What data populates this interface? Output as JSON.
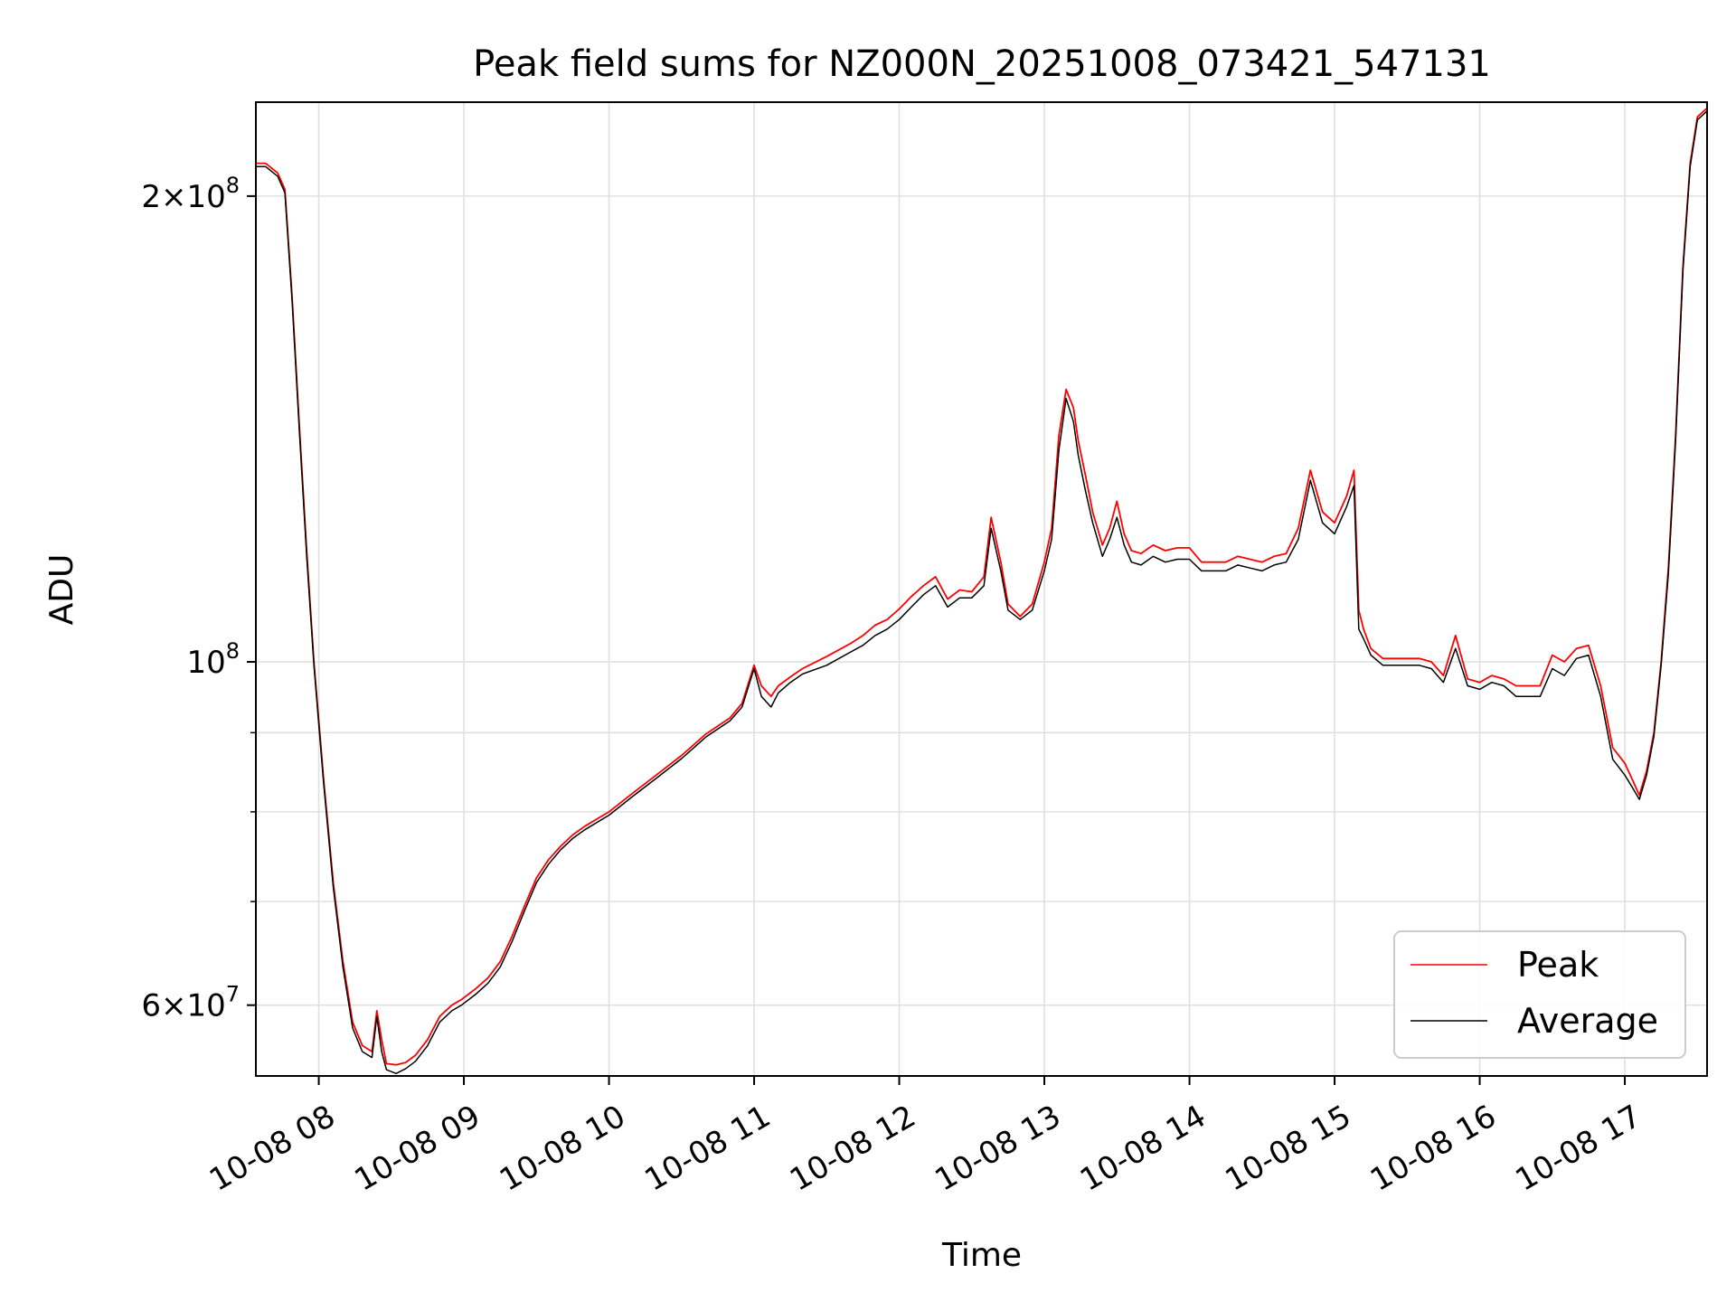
{
  "chart_data": {
    "type": "line",
    "title": "Peak field sums for NZ000N_20251008_073421_547131",
    "xlabel": "Time",
    "ylabel": "ADU",
    "yscale": "log",
    "xlim": [
      "2025-10-08 07:34",
      "2025-10-08 17:34"
    ],
    "ylim": [
      54000000,
      230000000
    ],
    "grid": true,
    "legend": {
      "placement": "lower-right",
      "entries": [
        "Peak",
        "Average"
      ]
    },
    "x_ticks": [
      {
        "x": "2025-10-08 08:00",
        "label": "10-08 08"
      },
      {
        "x": "2025-10-08 09:00",
        "label": "10-08 09"
      },
      {
        "x": "2025-10-08 10:00",
        "label": "10-08 10"
      },
      {
        "x": "2025-10-08 11:00",
        "label": "10-08 11"
      },
      {
        "x": "2025-10-08 12:00",
        "label": "10-08 12"
      },
      {
        "x": "2025-10-08 13:00",
        "label": "10-08 13"
      },
      {
        "x": "2025-10-08 14:00",
        "label": "10-08 14"
      },
      {
        "x": "2025-10-08 15:00",
        "label": "10-08 15"
      },
      {
        "x": "2025-10-08 16:00",
        "label": "10-08 16"
      },
      {
        "x": "2025-10-08 17:00",
        "label": "10-08 17"
      }
    ],
    "y_major_ticks": [
      {
        "y": 60000000,
        "base": "6×10",
        "exp": "7"
      },
      {
        "y": 100000000,
        "base": "10",
        "exp": "8"
      },
      {
        "y": 200000000,
        "base": "2×10",
        "exp": "8"
      }
    ],
    "y_minor_ticks": [
      70000000,
      80000000,
      90000000
    ],
    "series": [
      {
        "name": "Peak",
        "color": "#ff0000",
        "x": [
          "2025-10-08 07:34",
          "2025-10-08 07:38",
          "2025-10-08 07:43",
          "2025-10-08 07:46",
          "2025-10-08 07:49",
          "2025-10-08 07:52",
          "2025-10-08 07:55",
          "2025-10-08 07:58",
          "2025-10-08 08:02",
          "2025-10-08 08:06",
          "2025-10-08 08:10",
          "2025-10-08 08:14",
          "2025-10-08 08:18",
          "2025-10-08 08:22",
          "2025-10-08 08:24",
          "2025-10-08 08:26",
          "2025-10-08 08:28",
          "2025-10-08 08:32",
          "2025-10-08 08:36",
          "2025-10-08 08:40",
          "2025-10-08 08:45",
          "2025-10-08 08:50",
          "2025-10-08 08:55",
          "2025-10-08 08:59",
          "2025-10-08 09:05",
          "2025-10-08 09:10",
          "2025-10-08 09:15",
          "2025-10-08 09:20",
          "2025-10-08 09:25",
          "2025-10-08 09:30",
          "2025-10-08 09:35",
          "2025-10-08 09:40",
          "2025-10-08 09:45",
          "2025-10-08 09:50",
          "2025-10-08 10:00",
          "2025-10-08 10:10",
          "2025-10-08 10:20",
          "2025-10-08 10:30",
          "2025-10-08 10:40",
          "2025-10-08 10:50",
          "2025-10-08 10:55",
          "2025-10-08 11:00",
          "2025-10-08 11:03",
          "2025-10-08 11:07",
          "2025-10-08 11:10",
          "2025-10-08 11:15",
          "2025-10-08 11:20",
          "2025-10-08 11:30",
          "2025-10-08 11:40",
          "2025-10-08 11:45",
          "2025-10-08 11:50",
          "2025-10-08 11:55",
          "2025-10-08 12:00",
          "2025-10-08 12:05",
          "2025-10-08 12:10",
          "2025-10-08 12:15",
          "2025-10-08 12:20",
          "2025-10-08 12:25",
          "2025-10-08 12:30",
          "2025-10-08 12:35",
          "2025-10-08 12:38",
          "2025-10-08 12:42",
          "2025-10-08 12:45",
          "2025-10-08 12:50",
          "2025-10-08 12:55",
          "2025-10-08 13:00",
          "2025-10-08 13:03",
          "2025-10-08 13:06",
          "2025-10-08 13:09",
          "2025-10-08 13:12",
          "2025-10-08 13:14",
          "2025-10-08 13:17",
          "2025-10-08 13:20",
          "2025-10-08 13:24",
          "2025-10-08 13:27",
          "2025-10-08 13:30",
          "2025-10-08 13:33",
          "2025-10-08 13:36",
          "2025-10-08 13:40",
          "2025-10-08 13:45",
          "2025-10-08 13:50",
          "2025-10-08 13:55",
          "2025-10-08 14:00",
          "2025-10-08 14:05",
          "2025-10-08 14:10",
          "2025-10-08 14:15",
          "2025-10-08 14:20",
          "2025-10-08 14:25",
          "2025-10-08 14:30",
          "2025-10-08 14:35",
          "2025-10-08 14:40",
          "2025-10-08 14:45",
          "2025-10-08 14:50",
          "2025-10-08 14:55",
          "2025-10-08 15:00",
          "2025-10-08 15:05",
          "2025-10-08 15:08",
          "2025-10-08 15:10",
          "2025-10-08 15:12",
          "2025-10-08 15:15",
          "2025-10-08 15:20",
          "2025-10-08 15:25",
          "2025-10-08 15:30",
          "2025-10-08 15:35",
          "2025-10-08 15:40",
          "2025-10-08 15:45",
          "2025-10-08 15:50",
          "2025-10-08 15:55",
          "2025-10-08 16:00",
          "2025-10-08 16:05",
          "2025-10-08 16:10",
          "2025-10-08 16:15",
          "2025-10-08 16:20",
          "2025-10-08 16:25",
          "2025-10-08 16:30",
          "2025-10-08 16:35",
          "2025-10-08 16:40",
          "2025-10-08 16:45",
          "2025-10-08 16:50",
          "2025-10-08 16:55",
          "2025-10-08 17:00",
          "2025-10-08 17:03",
          "2025-10-08 17:06",
          "2025-10-08 17:09",
          "2025-10-08 17:12",
          "2025-10-08 17:15",
          "2025-10-08 17:18",
          "2025-10-08 17:21",
          "2025-10-08 17:24",
          "2025-10-08 17:27",
          "2025-10-08 17:30",
          "2025-10-08 17:34"
        ],
        "y": [
          210000000,
          210000000,
          207000000,
          202000000,
          172000000,
          142000000,
          118000000,
          100000000,
          84000000,
          72000000,
          64000000,
          58500000,
          56500000,
          56000000,
          59500000,
          57000000,
          55000000,
          54900000,
          55100000,
          55700000,
          57000000,
          59000000,
          60000000,
          60500000,
          61500000,
          62500000,
          64000000,
          66500000,
          69500000,
          72500000,
          74500000,
          76000000,
          77300000,
          78300000,
          80000000,
          82300000,
          84600000,
          87000000,
          89800000,
          92000000,
          94000000,
          99500000,
          96500000,
          95000000,
          96500000,
          97800000,
          99000000,
          100800000,
          102800000,
          104000000,
          105600000,
          106500000,
          108200000,
          110200000,
          112000000,
          113500000,
          109800000,
          111300000,
          111000000,
          113500000,
          124000000,
          116000000,
          109000000,
          107000000,
          109000000,
          116000000,
          122000000,
          140000000,
          150000000,
          146000000,
          139000000,
          132000000,
          125000000,
          119000000,
          122000000,
          127000000,
          121000000,
          118000000,
          117500000,
          119000000,
          118000000,
          118500000,
          118500000,
          116000000,
          116000000,
          116000000,
          117000000,
          116500000,
          116000000,
          117000000,
          117500000,
          122000000,
          133000000,
          125000000,
          123000000,
          128000000,
          133000000,
          108000000,
          105000000,
          102000000,
          100500000,
          100500000,
          100500000,
          100500000,
          100000000,
          98000000,
          104000000,
          97500000,
          97000000,
          98000000,
          97500000,
          96500000,
          96500000,
          96500000,
          101000000,
          100000000,
          102000000,
          102500000,
          96500000,
          88000000,
          86000000,
          84000000,
          82000000,
          85000000,
          90000000,
          100000000,
          115000000,
          140000000,
          180000000,
          210000000,
          225000000,
          228000000
        ]
      },
      {
        "name": "Average",
        "color": "#000000",
        "x": [
          "2025-10-08 07:34",
          "2025-10-08 07:38",
          "2025-10-08 07:43",
          "2025-10-08 07:46",
          "2025-10-08 07:49",
          "2025-10-08 07:52",
          "2025-10-08 07:55",
          "2025-10-08 07:58",
          "2025-10-08 08:02",
          "2025-10-08 08:06",
          "2025-10-08 08:10",
          "2025-10-08 08:14",
          "2025-10-08 08:18",
          "2025-10-08 08:22",
          "2025-10-08 08:24",
          "2025-10-08 08:26",
          "2025-10-08 08:28",
          "2025-10-08 08:32",
          "2025-10-08 08:36",
          "2025-10-08 08:40",
          "2025-10-08 08:45",
          "2025-10-08 08:50",
          "2025-10-08 08:55",
          "2025-10-08 08:59",
          "2025-10-08 09:05",
          "2025-10-08 09:10",
          "2025-10-08 09:15",
          "2025-10-08 09:20",
          "2025-10-08 09:25",
          "2025-10-08 09:30",
          "2025-10-08 09:35",
          "2025-10-08 09:40",
          "2025-10-08 09:45",
          "2025-10-08 09:50",
          "2025-10-08 10:00",
          "2025-10-08 10:10",
          "2025-10-08 10:20",
          "2025-10-08 10:30",
          "2025-10-08 10:40",
          "2025-10-08 10:50",
          "2025-10-08 10:55",
          "2025-10-08 11:00",
          "2025-10-08 11:03",
          "2025-10-08 11:07",
          "2025-10-08 11:10",
          "2025-10-08 11:15",
          "2025-10-08 11:20",
          "2025-10-08 11:30",
          "2025-10-08 11:40",
          "2025-10-08 11:45",
          "2025-10-08 11:50",
          "2025-10-08 11:55",
          "2025-10-08 12:00",
          "2025-10-08 12:05",
          "2025-10-08 12:10",
          "2025-10-08 12:15",
          "2025-10-08 12:20",
          "2025-10-08 12:25",
          "2025-10-08 12:30",
          "2025-10-08 12:35",
          "2025-10-08 12:38",
          "2025-10-08 12:42",
          "2025-10-08 12:45",
          "2025-10-08 12:50",
          "2025-10-08 12:55",
          "2025-10-08 13:00",
          "2025-10-08 13:03",
          "2025-10-08 13:06",
          "2025-10-08 13:09",
          "2025-10-08 13:12",
          "2025-10-08 13:14",
          "2025-10-08 13:17",
          "2025-10-08 13:20",
          "2025-10-08 13:24",
          "2025-10-08 13:27",
          "2025-10-08 13:30",
          "2025-10-08 13:33",
          "2025-10-08 13:36",
          "2025-10-08 13:40",
          "2025-10-08 13:45",
          "2025-10-08 13:50",
          "2025-10-08 13:55",
          "2025-10-08 14:00",
          "2025-10-08 14:05",
          "2025-10-08 14:10",
          "2025-10-08 14:15",
          "2025-10-08 14:20",
          "2025-10-08 14:25",
          "2025-10-08 14:30",
          "2025-10-08 14:35",
          "2025-10-08 14:40",
          "2025-10-08 14:45",
          "2025-10-08 14:50",
          "2025-10-08 14:55",
          "2025-10-08 15:00",
          "2025-10-08 15:05",
          "2025-10-08 15:08",
          "2025-10-08 15:10",
          "2025-10-08 15:12",
          "2025-10-08 15:15",
          "2025-10-08 15:20",
          "2025-10-08 15:25",
          "2025-10-08 15:30",
          "2025-10-08 15:35",
          "2025-10-08 15:40",
          "2025-10-08 15:45",
          "2025-10-08 15:50",
          "2025-10-08 15:55",
          "2025-10-08 16:00",
          "2025-10-08 16:05",
          "2025-10-08 16:10",
          "2025-10-08 16:15",
          "2025-10-08 16:20",
          "2025-10-08 16:25",
          "2025-10-08 16:30",
          "2025-10-08 16:35",
          "2025-10-08 16:40",
          "2025-10-08 16:45",
          "2025-10-08 16:50",
          "2025-10-08 16:55",
          "2025-10-08 17:00",
          "2025-10-08 17:03",
          "2025-10-08 17:06",
          "2025-10-08 17:09",
          "2025-10-08 17:12",
          "2025-10-08 17:15",
          "2025-10-08 17:18",
          "2025-10-08 17:21",
          "2025-10-08 17:24",
          "2025-10-08 17:27",
          "2025-10-08 17:30",
          "2025-10-08 17:34"
        ],
        "y": [
          209000000,
          209000000,
          206000000,
          201000000,
          171000000,
          141000000,
          117000000,
          99500000,
          83500000,
          71500000,
          63500000,
          58000000,
          56000000,
          55500000,
          59000000,
          56000000,
          54500000,
          54200000,
          54600000,
          55200000,
          56500000,
          58500000,
          59500000,
          60000000,
          61000000,
          62000000,
          63500000,
          66000000,
          69000000,
          72000000,
          74000000,
          75600000,
          76900000,
          77900000,
          79600000,
          81900000,
          84200000,
          86600000,
          89400000,
          91600000,
          93500000,
          99000000,
          95000000,
          93500000,
          95500000,
          97000000,
          98200000,
          99500000,
          101500000,
          102500000,
          104000000,
          105000000,
          106500000,
          108500000,
          110500000,
          112000000,
          108500000,
          110000000,
          110000000,
          112000000,
          122000000,
          114500000,
          108000000,
          106500000,
          108000000,
          114500000,
          120000000,
          137000000,
          148000000,
          143000000,
          136000000,
          129000000,
          123000000,
          117000000,
          120000000,
          124000000,
          119000000,
          116000000,
          115500000,
          117000000,
          116000000,
          116500000,
          116500000,
          114500000,
          114500000,
          114500000,
          115500000,
          115000000,
          114500000,
          115500000,
          116000000,
          120000000,
          131000000,
          123000000,
          121000000,
          126000000,
          130000000,
          105000000,
          103500000,
          101000000,
          99500000,
          99500000,
          99500000,
          99500000,
          99000000,
          97000000,
          102000000,
          96500000,
          96000000,
          97000000,
          96500000,
          95000000,
          95000000,
          95000000,
          99000000,
          98000000,
          100500000,
          101000000,
          95000000,
          86500000,
          84500000,
          83000000,
          81500000,
          84500000,
          89500000,
          99500000,
          114000000,
          139000000,
          179000000,
          209000000,
          224000000,
          227000000
        ]
      }
    ]
  }
}
